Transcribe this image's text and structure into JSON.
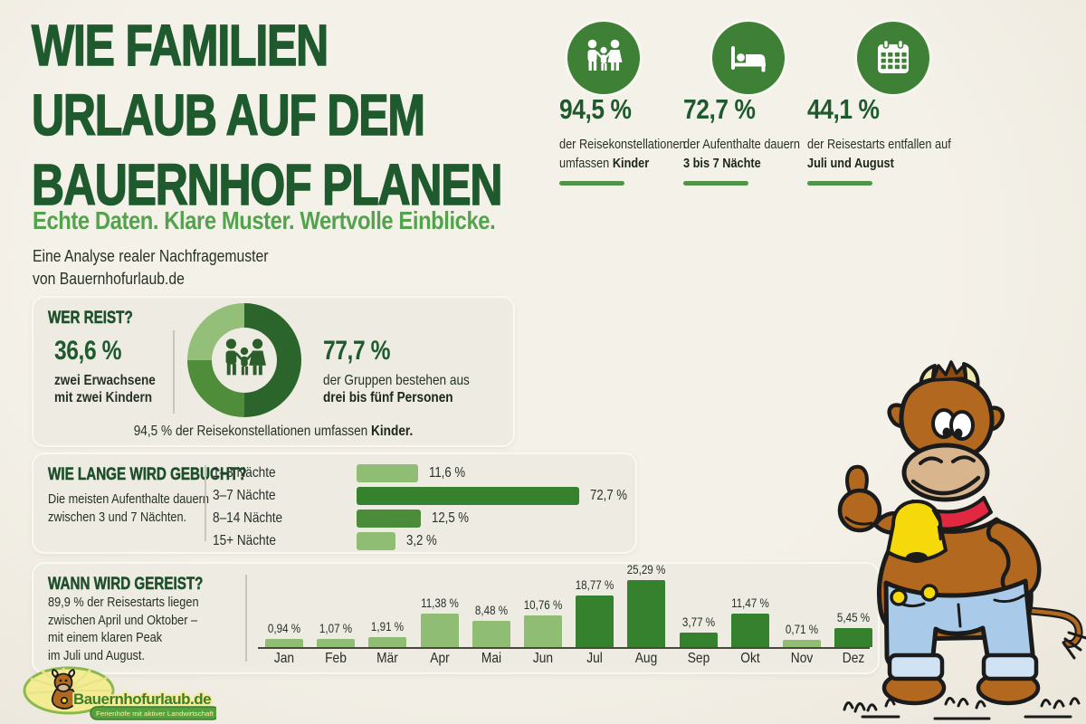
{
  "colors": {
    "page_bg": "#f2eee5",
    "panel_bg": "#edebe2",
    "panel_border": "#f9f8f2",
    "dark_green": "#1e5a2d",
    "mid_green": "#55a24e",
    "icon_green": "#3e8036",
    "underline": "#4f9447",
    "heading": "#1d4f2a",
    "divider": "#c9c6ba",
    "text": "#273127",
    "bar_light": "#90bd74",
    "bar_mid": "#4b8c3a",
    "bar_dark": "#35812d",
    "cow_brown": "#b2691f",
    "cow_dark_brown": "#8a4c12",
    "cow_muzzle": "#d9b58d",
    "cow_horn": "#f0eaaa",
    "cow_collar": "#e22840",
    "cow_bell": "#f6d90b",
    "cow_jeans": "#a9cbe9",
    "cow_cuff": "#cfe3f4",
    "outline": "#1b1b1b",
    "logo_burst": "#f3ec93",
    "logo_burst_edge": "#8cb94e",
    "logo_brand_green": "#3d7d2c",
    "logo_ribbon": "#55a23c",
    "logo_ribbon_text": "#f7f2a8"
  },
  "header": {
    "title_lines": [
      "WIE FAMILIEN",
      "URLAUB AUF DEM",
      "BAUERNHOF PLANEN"
    ],
    "subtitle": "Echte Daten. Klare Muster. Wertvolle Einblicke.",
    "byline_line1": "Eine Analyse realer Nachfragemuster",
    "byline_line2": "von Bauernhofurlaub.de"
  },
  "key_stats": [
    {
      "icon": "family-icon",
      "value": "94,5 %",
      "line1": "der Reisekonstellationen",
      "line2_prefix": "umfassen ",
      "line2_bold": "Kinder"
    },
    {
      "icon": "bed-icon",
      "value": "72,7 %",
      "line1": "der Aufenthalte dauern",
      "line2_prefix": "",
      "line2_bold": "3 bis 7 Nächte"
    },
    {
      "icon": "calendar-icon",
      "value": "44,1 %",
      "line1": "der Reisestarts entfallen auf",
      "line2_prefix": "",
      "line2_bold": "Juli und August"
    }
  ],
  "who_panel": {
    "heading": "WER REIST?",
    "left_value": "36,6 %",
    "left_line1": "zwei Erwachsene",
    "left_line2": "mit zwei Kindern",
    "right_value": "77,7 %",
    "right_line1": "der Gruppen bestehen aus",
    "right_line2": "drei bis fünf Personen",
    "caption_prefix": "94,5 % der Reisekonstellationen umfassen ",
    "caption_bold": "Kinder.",
    "donut_segments": [
      {
        "pct": 50,
        "color": "#2b652c"
      },
      {
        "pct": 25,
        "color": "#4f8d3b"
      },
      {
        "pct": 25,
        "color": "#94bf79"
      }
    ]
  },
  "duration_panel": {
    "heading": "WIE LANGE WIRD GEBUCHT?",
    "text_line1": "Die meisten Aufenthalte dauern",
    "text_line2": "zwischen 3 und 7 Nächten.",
    "bars": [
      {
        "label": "1–3 Nächte",
        "value": 11.6,
        "display": "11,6 %",
        "shade": "light"
      },
      {
        "label": "3–7 Nächte",
        "value": 72.7,
        "display": "72,7 %",
        "shade": "dark"
      },
      {
        "label": "8–14 Nächte",
        "value": 12.5,
        "display": "12,5 %",
        "shade": "mid"
      },
      {
        "label": "15+ Nächte",
        "value": 3.2,
        "display": "3,2 %",
        "shade": "light"
      }
    ]
  },
  "season_panel": {
    "heading": "WANN WIRD GEREIST?",
    "text_lines": [
      "89,9 % der Reisestarts liegen",
      "zwischen April und Oktober –",
      "mit einem klaren Peak",
      "im Juli und August."
    ],
    "months": [
      {
        "label": "Jan",
        "value": 0.94,
        "display": "0,94 %",
        "shade": "light"
      },
      {
        "label": "Feb",
        "value": 1.07,
        "display": "1,07 %",
        "shade": "light"
      },
      {
        "label": "Mär",
        "value": 1.91,
        "display": "1,91 %",
        "shade": "light"
      },
      {
        "label": "Apr",
        "value": 11.38,
        "display": "11,38 %",
        "shade": "light"
      },
      {
        "label": "Mai",
        "value": 8.48,
        "display": "8,48 %",
        "shade": "light"
      },
      {
        "label": "Jun",
        "value": 10.76,
        "display": "10,76 %",
        "shade": "light"
      },
      {
        "label": "Jul",
        "value": 18.77,
        "display": "18,77 %",
        "shade": "dark"
      },
      {
        "label": "Aug",
        "value": 25.29,
        "display": "25,29 %",
        "shade": "dark"
      },
      {
        "label": "Sep",
        "value": 3.77,
        "display": "3,77 %",
        "shade": "dark"
      },
      {
        "label": "Okt",
        "value": 11.47,
        "display": "11,47 %",
        "shade": "dark"
      },
      {
        "label": "Nov",
        "value": 0.71,
        "display": "0,71 %",
        "shade": "light"
      },
      {
        "label": "Dez",
        "value": 5.45,
        "display": "5,45 %",
        "shade": "dark"
      }
    ]
  },
  "logo": {
    "brand": "Bauernhofurlaub.de",
    "tagline": "Ferienhöfe mit aktiver Landwirtschaft"
  },
  "mascot": "cow-mascot-thumbs-up",
  "chart_data": [
    {
      "type": "pie",
      "title": "WER REIST? – Gruppenzusammensetzung (Donut, Segmente aus Bogenwinkeln geschätzt)",
      "slices": [
        {
          "value": 50,
          "color": "#2b652c"
        },
        {
          "value": 25,
          "color": "#4f8d3b"
        },
        {
          "value": 25,
          "color": "#94bf79"
        }
      ],
      "annotations": [
        "36,6 % zwei Erwachsene mit zwei Kindern",
        "77,7 % der Gruppen bestehen aus drei bis fünf Personen",
        "94,5 % der Reisekonstellationen umfassen Kinder"
      ],
      "legend": false
    },
    {
      "type": "bar",
      "orientation": "horizontal",
      "title": "WIE LANGE WIRD GEBUCHT?",
      "categories": [
        "1–3 Nächte",
        "3–7 Nächte",
        "8–14 Nächte",
        "15+ Nächte"
      ],
      "values": [
        11.6,
        72.7,
        12.5,
        3.2
      ],
      "unit": "%",
      "xlim": [
        0,
        80
      ],
      "grid": false,
      "data_labels": true
    },
    {
      "type": "bar",
      "title": "WANN WIRD GEREIST?",
      "categories": [
        "Jan",
        "Feb",
        "Mär",
        "Apr",
        "Mai",
        "Jun",
        "Jul",
        "Aug",
        "Sep",
        "Okt",
        "Nov",
        "Dez"
      ],
      "values": [
        0.94,
        1.07,
        1.91,
        11.38,
        8.48,
        10.76,
        18.77,
        25.29,
        3.77,
        11.47,
        0.71,
        5.45
      ],
      "unit": "%",
      "ylim": [
        0,
        26
      ],
      "grid": false,
      "data_labels": true,
      "note": "89,9 % der Reisestarts liegen zwischen April und Oktober – mit einem klaren Peak im Juli und August."
    }
  ]
}
